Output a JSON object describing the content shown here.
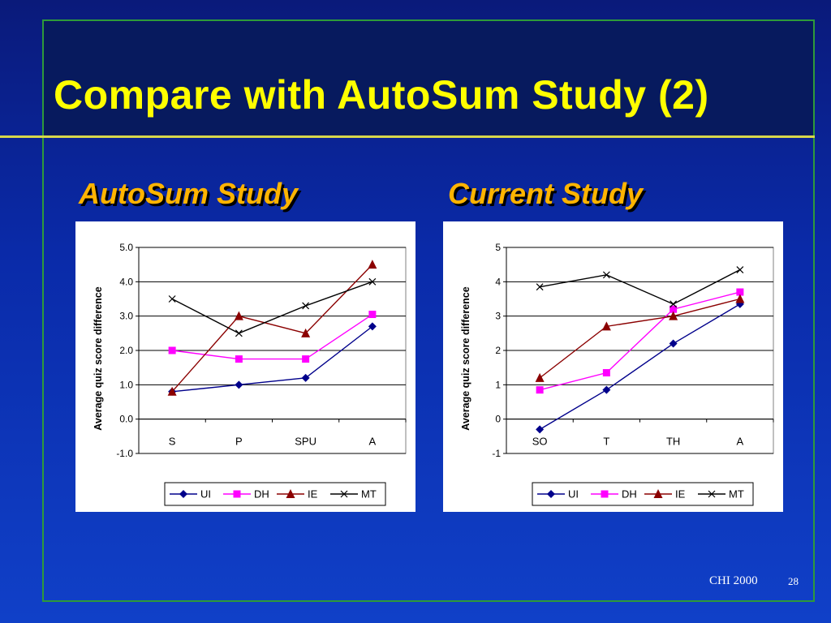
{
  "slide": {
    "title": "Compare with AutoSum Study (2)",
    "left_heading": "AutoSum Study",
    "right_heading": "Current Study",
    "footer_conference": "CHI 2000",
    "footer_page": "28"
  },
  "colors": {
    "background": "#0a2aa8",
    "title": "#ffff00",
    "heading": "#ffb400",
    "frame": "#2e9a3a",
    "UI": "#00008b",
    "DH": "#ff00ff",
    "IE": "#8b0000",
    "MT": "#000000"
  },
  "chart_data": [
    {
      "type": "line",
      "ylabel": "Average quiz score difference",
      "xlabel": "",
      "categories": [
        "S",
        "P",
        "SPU",
        "A"
      ],
      "ylim": [
        -1.0,
        5.0
      ],
      "yticks": [
        "-1.0",
        "0.0",
        "1.0",
        "2.0",
        "3.0",
        "4.0",
        "5.0"
      ],
      "grid": "horizontal",
      "legend_position": "bottom",
      "series": [
        {
          "name": "UI",
          "marker": "diamond",
          "values": [
            0.8,
            1.0,
            1.2,
            2.7
          ]
        },
        {
          "name": "DH",
          "marker": "square",
          "values": [
            2.0,
            1.75,
            1.75,
            3.05
          ]
        },
        {
          "name": "IE",
          "marker": "triangle",
          "values": [
            0.8,
            3.0,
            2.5,
            4.5
          ]
        },
        {
          "name": "MT",
          "marker": "x",
          "values": [
            3.5,
            2.5,
            3.3,
            4.0
          ]
        }
      ]
    },
    {
      "type": "line",
      "ylabel": "Average quiz score difference",
      "xlabel": "",
      "categories": [
        "SO",
        "T",
        "TH",
        "A"
      ],
      "ylim": [
        -1,
        5
      ],
      "yticks": [
        "-1",
        "0",
        "1",
        "2",
        "3",
        "4",
        "5"
      ],
      "grid": "horizontal",
      "legend_position": "bottom",
      "series": [
        {
          "name": "UI",
          "marker": "diamond",
          "values": [
            -0.3,
            0.85,
            2.2,
            3.35
          ]
        },
        {
          "name": "DH",
          "marker": "square",
          "values": [
            0.85,
            1.35,
            3.2,
            3.7
          ]
        },
        {
          "name": "IE",
          "marker": "triangle",
          "values": [
            1.2,
            2.7,
            3.0,
            3.5
          ]
        },
        {
          "name": "MT",
          "marker": "x",
          "values": [
            3.85,
            4.2,
            3.35,
            4.35
          ]
        }
      ]
    }
  ]
}
